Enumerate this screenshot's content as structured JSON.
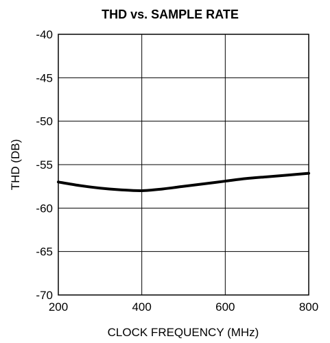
{
  "chart_data": {
    "type": "line",
    "title": "THD vs. SAMPLE RATE",
    "xlabel": "CLOCK FREQUENCY (MHz)",
    "ylabel": "THD (DB)",
    "xlim": [
      200,
      800
    ],
    "ylim": [
      -70,
      -40
    ],
    "x_ticks": [
      200,
      400,
      600,
      800
    ],
    "y_ticks": [
      -40,
      -45,
      -50,
      -55,
      -60,
      -65,
      -70
    ],
    "x_tick_labels": [
      "200",
      "400",
      "600",
      "800"
    ],
    "y_tick_labels": [
      "-40",
      "-45",
      "-50",
      "-55",
      "-60",
      "-65",
      "-70"
    ],
    "grid": true,
    "series": [
      {
        "x": [
          200,
          250,
          300,
          350,
          400,
          450,
          500,
          550,
          600,
          650,
          700,
          750,
          800
        ],
        "y": [
          -57.0,
          -57.4,
          -57.7,
          -57.9,
          -58.0,
          -57.8,
          -57.5,
          -57.2,
          -56.9,
          -56.6,
          -56.4,
          -56.2,
          -56.0
        ],
        "color": "#000000"
      }
    ]
  }
}
